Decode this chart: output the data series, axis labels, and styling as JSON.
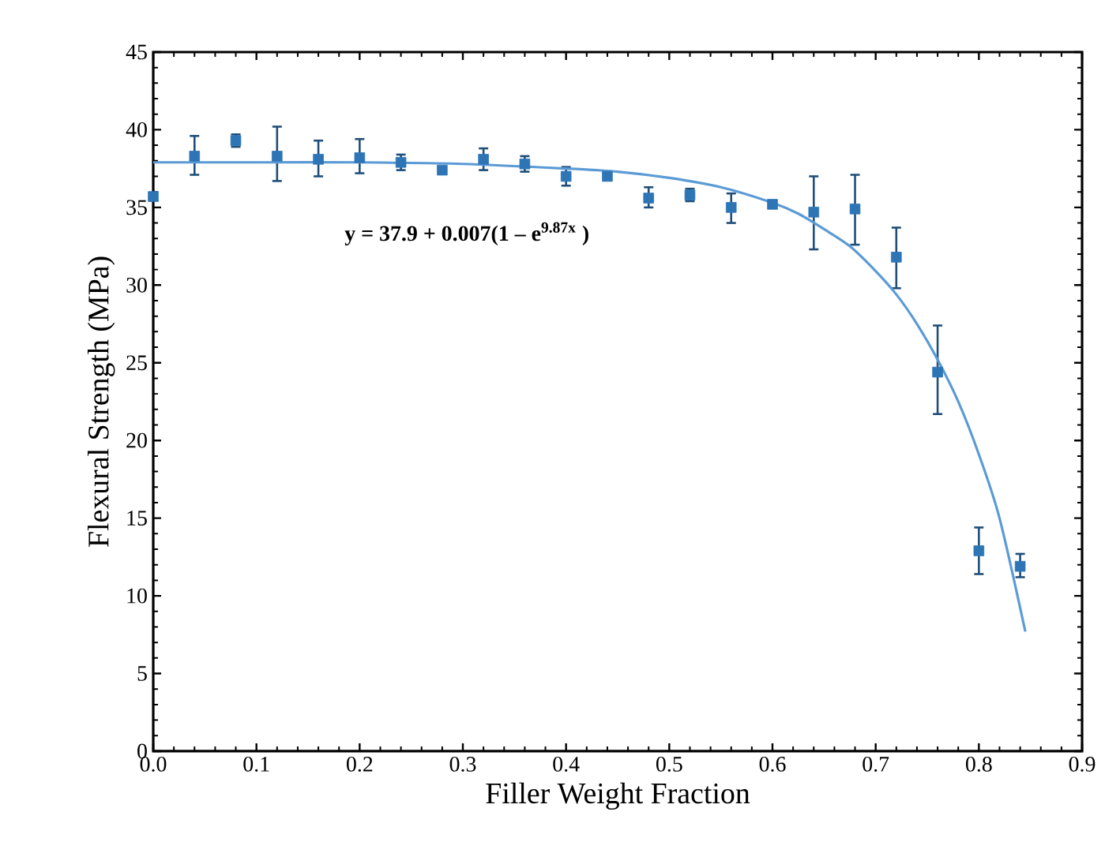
{
  "chart_data": {
    "type": "scatter",
    "xlabel": "Filler Weight Fraction",
    "ylabel": "Flexural Strength (MPa)",
    "annotations": [
      "y = 37.9 + 0.007(1 – e$^{9.87x}$ )"
    ],
    "xlim": [
      0,
      0.9
    ],
    "ylim": [
      0,
      45
    ],
    "xticks": [
      {
        "value": 0,
        "label": "0.0"
      },
      0.1,
      0.2,
      0.3,
      0.4,
      0.5,
      0.6,
      0.7,
      0.8,
      0.9
    ],
    "yticks": [
      0,
      5,
      10,
      15,
      20,
      25,
      30,
      35,
      40,
      45
    ],
    "grid": false,
    "series": [
      {
        "marker": "square",
        "color": "#2e75b6",
        "x": [
          0,
          0.04,
          0.08,
          0.12,
          0.16,
          0.2,
          0.24,
          0.28,
          0.32,
          0.36,
          0.4,
          0.44,
          0.48,
          0.52,
          0.56,
          0.6,
          0.64,
          0.68,
          0.72,
          0.76,
          0.8,
          0.84
        ],
        "values": [
          35.7,
          38.3,
          39.3,
          38.3,
          38.1,
          38.2,
          37.9,
          37.4,
          38.1,
          37.8,
          37.0,
          37.0,
          35.6,
          35.8,
          35.0,
          35.2,
          34.7,
          34.9,
          31.8,
          24.4,
          12.9,
          11.9
        ],
        "errors": [
          null,
          [
            37.1,
            39.6
          ],
          [
            38.9,
            39.7
          ],
          [
            36.7,
            40.2
          ],
          [
            37.0,
            39.3
          ],
          [
            37.2,
            39.4
          ],
          [
            37.4,
            38.4
          ],
          null,
          [
            37.4,
            38.8
          ],
          [
            37.3,
            38.3
          ],
          [
            36.4,
            37.6
          ],
          null,
          [
            35.0,
            36.3
          ],
          [
            35.4,
            36.2
          ],
          [
            34.0,
            35.9
          ],
          null,
          [
            32.3,
            37.0
          ],
          [
            32.6,
            37.1
          ],
          [
            29.8,
            33.7
          ],
          [
            21.7,
            27.4
          ],
          [
            11.4,
            14.4
          ],
          [
            11.2,
            12.7
          ]
        ]
      },
      {
        "type": "line",
        "marker": "none",
        "line_style": "solid",
        "color": "#5b9bd5",
        "x": [
          0,
          0.1,
          0.2,
          0.3,
          0.4,
          0.45,
          0.5,
          0.55,
          0.6,
          0.625,
          0.65,
          0.675,
          0.7,
          0.72,
          0.74,
          0.76,
          0.78,
          0.8,
          0.82,
          0.845
        ],
        "values": [
          37.9,
          37.9,
          37.9,
          37.8,
          37.5,
          37.3,
          36.9,
          36.3,
          35.3,
          34.6,
          33.6,
          32.5,
          30.9,
          29.4,
          27.5,
          25.2,
          22.5,
          19.1,
          15.0,
          7.7
        ]
      }
    ]
  }
}
